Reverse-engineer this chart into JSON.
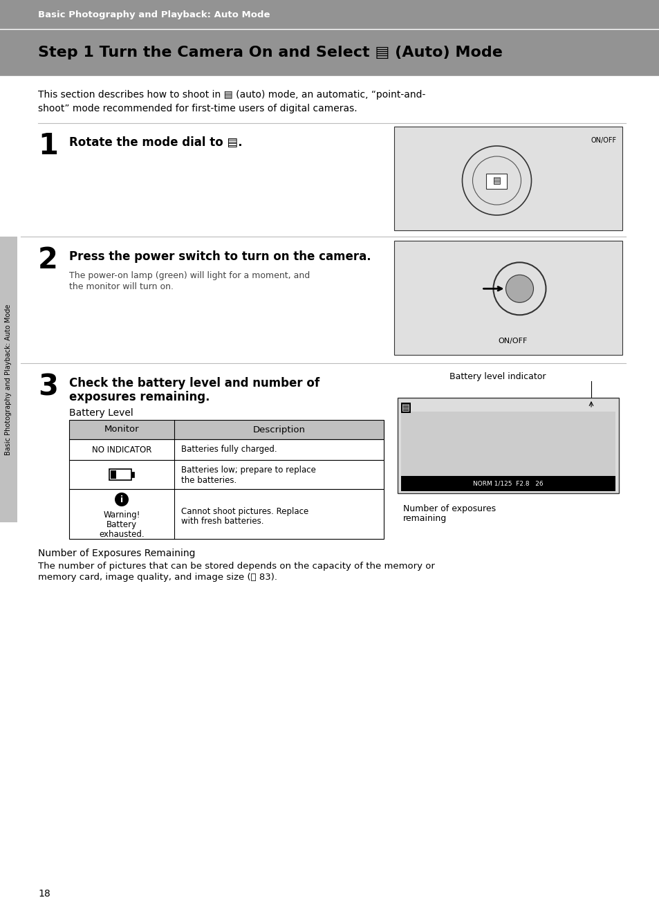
{
  "page_bg": "#ffffff",
  "header_bg": "#939393",
  "header_text": "Basic Photography and Playback: Auto Mode",
  "header_text_color": "#ffffff",
  "title_bg": "#939393",
  "title_text": "Step 1 Turn the Camera On and Select ▤ (Auto) Mode",
  "title_color": "#000000",
  "intro_line1": "This section describes how to shoot in ▤ (auto) mode, an automatic, “point-and-",
  "intro_line2": "shoot” mode recommended for first-time users of digital cameras.",
  "step1_num": "1",
  "step1_text": "Rotate the mode dial to ▤.",
  "step2_num": "2",
  "step2_text": "Press the power switch to turn on the camera.",
  "step2_sub1": "The power-on lamp (green) will light for a moment, and",
  "step2_sub2": "the monitor will turn on.",
  "step3_num": "3",
  "step3_line1": "Check the battery level and number of",
  "step3_line2": "exposures remaining.",
  "battery_level_label": "Battery Level",
  "table_header_monitor": "Monitor",
  "table_header_desc": "Description",
  "row1_monitor": "NO INDICATOR",
  "row1_desc": "Batteries fully charged.",
  "row2_desc1": "Batteries low; prepare to replace",
  "row2_desc2": "the batteries.",
  "row3_warn1": "Warning!",
  "row3_warn2": "Battery",
  "row3_warn3": "exhausted.",
  "row3_desc1": "Cannot shoot pictures. Replace",
  "row3_desc2": "with fresh batteries.",
  "noe_header": "Number of Exposures Remaining",
  "noe_text1": "The number of pictures that can be stored depends on the capacity of the memory or",
  "noe_text2": "memory card, image quality, and image size (ⓜ 83).",
  "batt_indicator_label": "Battery level indicator",
  "num_exp_label1": "Number of exposures",
  "num_exp_label2": "remaining",
  "sidebar_text": "Basic Photography and Playback: Auto Mode",
  "page_num": "18",
  "header_bg_color": "#939393",
  "sidebar_bg_color": "#c0c0c0",
  "table_header_bg": "#c0c0c0",
  "img_bg1": "#e0e0e0",
  "img_bg2": "#e0e0e0",
  "img_bg3": "#e0e0e0",
  "line_color": "#aaaaaa",
  "table_border": "#000000"
}
